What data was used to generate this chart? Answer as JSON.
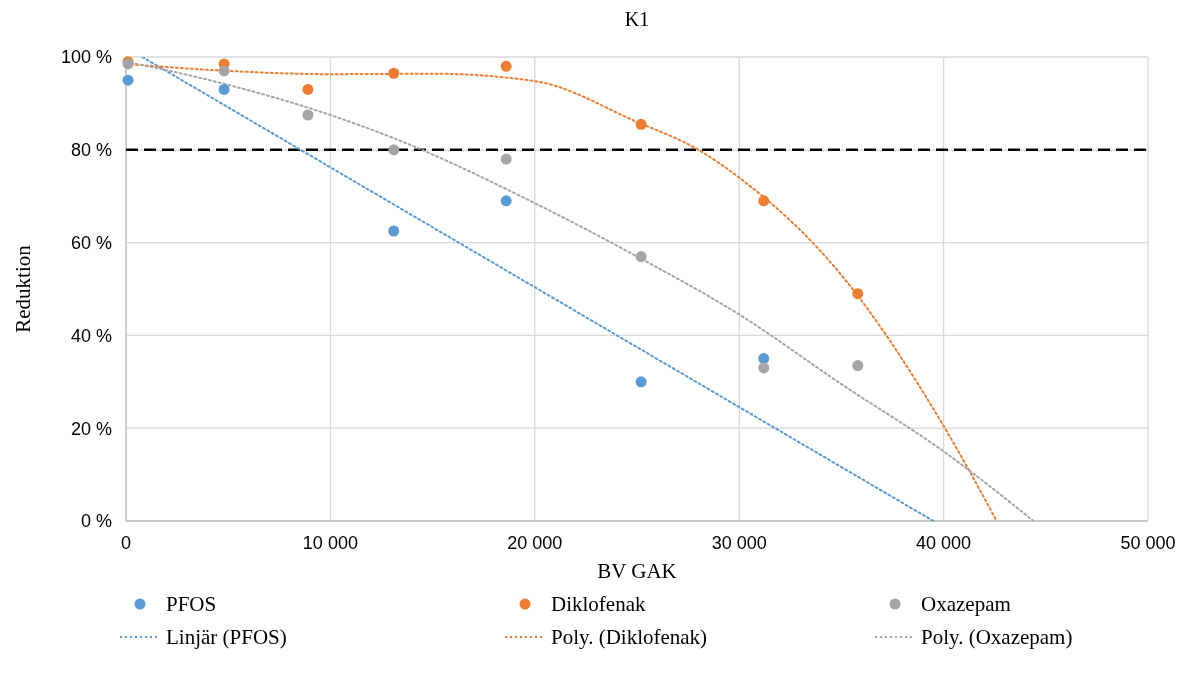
{
  "chart_data": {
    "type": "scatter",
    "title": "K1",
    "xlabel": "BV GAK",
    "ylabel": "Reduktion",
    "xlim": [
      0,
      50000
    ],
    "xticks": [
      {
        "value": 0,
        "label": "0"
      },
      {
        "value": 10000,
        "label": "10 000"
      },
      {
        "value": 20000,
        "label": "20 000"
      },
      {
        "value": 30000,
        "label": "30 000"
      },
      {
        "value": 40000,
        "label": "40 000"
      },
      {
        "value": 50000,
        "label": "50 000"
      }
    ],
    "ylim": [
      0,
      100
    ],
    "yticks": [
      {
        "value": 0,
        "label": "0 %"
      },
      {
        "value": 20,
        "label": "20 %"
      },
      {
        "value": 40,
        "label": "40 %"
      },
      {
        "value": 60,
        "label": "60 %"
      },
      {
        "value": 80,
        "label": "80 %"
      },
      {
        "value": 100,
        "label": "100 %"
      }
    ],
    "grid": true,
    "legend": "bottom",
    "marker": "circle",
    "ref_lines": [
      {
        "axis": "y",
        "value": 80,
        "color": "#000000",
        "line_style": "dashed"
      }
    ],
    "series": [
      {
        "name": "PFOS",
        "color": "#5b9bd5",
        "x": [
          100,
          4800,
          13100,
          18600,
          25200,
          31200
        ],
        "values": [
          95,
          93,
          62.5,
          69,
          30,
          35
        ]
      },
      {
        "name": "Diklofenak",
        "color": "#ed7d31",
        "x": [
          100,
          4800,
          8900,
          13100,
          18600,
          25200,
          31200,
          35800
        ],
        "values": [
          99,
          98.5,
          93,
          96.5,
          98,
          85.5,
          69,
          49
        ]
      },
      {
        "name": "Oxazepam",
        "color": "#a5a5a5",
        "x": [
          100,
          4800,
          8900,
          13100,
          18600,
          25200,
          31200,
          35800
        ],
        "values": [
          98.5,
          97,
          87.5,
          80,
          78,
          57,
          33,
          33.5
        ]
      },
      {
        "name": "Linjär (PFOS)",
        "type": "line",
        "color": "#5b9bd5",
        "marker": "none",
        "line_style": "dotted",
        "x": [
          800,
          39500
        ],
        "values": [
          100,
          0
        ]
      },
      {
        "name": "Poly. (Diklofenak)",
        "type": "line",
        "color": "#ed7d31",
        "marker": "none",
        "line_style": "dotted",
        "x": [
          0,
          5000,
          10000,
          15000,
          20000,
          25000,
          28000,
          30000,
          35000,
          40000,
          42600
        ],
        "values": [
          98.5,
          97,
          96.3,
          96.4,
          94.8,
          86,
          80,
          74,
          53,
          20.5,
          0
        ]
      },
      {
        "name": "Poly. (Oxazepam)",
        "type": "line",
        "color": "#a5a5a5",
        "marker": "none",
        "line_style": "dotted",
        "x": [
          0,
          5000,
          10000,
          13100,
          20000,
          25000,
          30000,
          35000,
          40000,
          44400
        ],
        "values": [
          99,
          94,
          87.5,
          82.5,
          68.5,
          57,
          44.5,
          29.5,
          15,
          0
        ]
      }
    ]
  }
}
